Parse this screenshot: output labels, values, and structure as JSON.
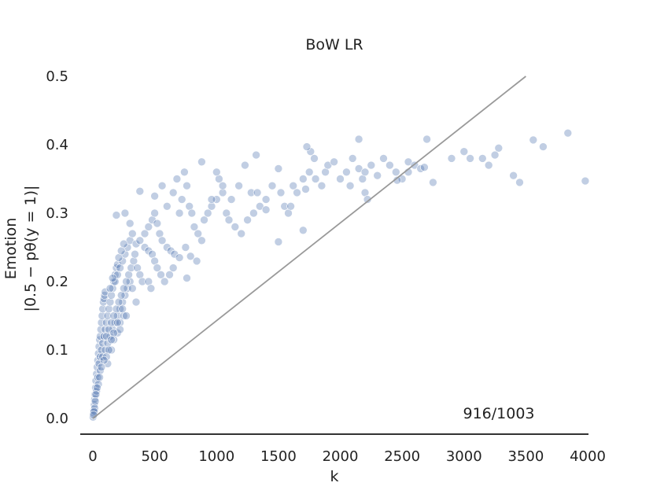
{
  "chart_data": {
    "type": "scatter",
    "title": "BoW LR",
    "xlabel": "k",
    "ylabel_line1": "Emotion",
    "ylabel_line2": "|0.5 − pθ(y = 1)|",
    "xlim": [
      -100,
      4000
    ],
    "ylim": [
      -0.02,
      0.5
    ],
    "xticks": [
      "0",
      "500",
      "1000",
      "1500",
      "2000",
      "2500",
      "3000",
      "3500",
      "4000"
    ],
    "yticks": [
      "0.0",
      "0.1",
      "0.2",
      "0.3",
      "0.4",
      "0.5"
    ],
    "grid": false,
    "reference_line": {
      "from": [
        0,
        0
      ],
      "to": [
        3500,
        0.5
      ]
    },
    "annotation": "916/1003",
    "point_color": "#4c72b0",
    "line_color": "#999999",
    "points": [
      [
        2,
        0.002
      ],
      [
        5,
        0.008
      ],
      [
        8,
        0.012
      ],
      [
        12,
        0.02
      ],
      [
        15,
        0.028
      ],
      [
        18,
        0.035
      ],
      [
        22,
        0.045
      ],
      [
        25,
        0.055
      ],
      [
        30,
        0.065
      ],
      [
        35,
        0.075
      ],
      [
        40,
        0.085
      ],
      [
        45,
        0.095
      ],
      [
        50,
        0.105
      ],
      [
        55,
        0.115
      ],
      [
        60,
        0.12
      ],
      [
        65,
        0.13
      ],
      [
        70,
        0.14
      ],
      [
        75,
        0.15
      ],
      [
        80,
        0.16
      ],
      [
        85,
        0.17
      ],
      [
        90,
        0.175
      ],
      [
        95,
        0.18
      ],
      [
        100,
        0.185
      ],
      [
        30,
        0.04
      ],
      [
        40,
        0.06
      ],
      [
        50,
        0.08
      ],
      [
        60,
        0.09
      ],
      [
        70,
        0.1
      ],
      [
        80,
        0.11
      ],
      [
        90,
        0.12
      ],
      [
        100,
        0.13
      ],
      [
        110,
        0.14
      ],
      [
        120,
        0.15
      ],
      [
        130,
        0.16
      ],
      [
        140,
        0.17
      ],
      [
        150,
        0.18
      ],
      [
        160,
        0.19
      ],
      [
        170,
        0.2
      ],
      [
        180,
        0.21
      ],
      [
        190,
        0.22
      ],
      [
        200,
        0.225
      ],
      [
        60,
        0.07
      ],
      [
        80,
        0.09
      ],
      [
        100,
        0.1
      ],
      [
        120,
        0.11
      ],
      [
        140,
        0.12
      ],
      [
        160,
        0.13
      ],
      [
        180,
        0.14
      ],
      [
        200,
        0.15
      ],
      [
        220,
        0.16
      ],
      [
        240,
        0.17
      ],
      [
        260,
        0.18
      ],
      [
        280,
        0.19
      ],
      [
        300,
        0.2
      ],
      [
        110,
        0.12
      ],
      [
        130,
        0.13
      ],
      [
        150,
        0.14
      ],
      [
        170,
        0.15
      ],
      [
        190,
        0.16
      ],
      [
        210,
        0.17
      ],
      [
        230,
        0.18
      ],
      [
        250,
        0.19
      ],
      [
        270,
        0.2
      ],
      [
        290,
        0.21
      ],
      [
        310,
        0.22
      ],
      [
        330,
        0.23
      ],
      [
        120,
        0.08
      ],
      [
        150,
        0.1
      ],
      [
        170,
        0.115
      ],
      [
        200,
        0.125
      ],
      [
        220,
        0.14
      ],
      [
        250,
        0.15
      ],
      [
        180,
        0.2
      ],
      [
        200,
        0.21
      ],
      [
        220,
        0.22
      ],
      [
        240,
        0.23
      ],
      [
        260,
        0.24
      ],
      [
        280,
        0.25
      ],
      [
        300,
        0.26
      ],
      [
        320,
        0.27
      ],
      [
        340,
        0.24
      ],
      [
        360,
        0.22
      ],
      [
        380,
        0.21
      ],
      [
        400,
        0.2
      ],
      [
        140,
        0.19
      ],
      [
        160,
        0.205
      ],
      [
        210,
        0.235
      ],
      [
        230,
        0.245
      ],
      [
        250,
        0.255
      ],
      [
        190,
        0.297
      ],
      [
        260,
        0.3
      ],
      [
        300,
        0.285
      ],
      [
        350,
        0.255
      ],
      [
        380,
        0.26
      ],
      [
        420,
        0.25
      ],
      [
        450,
        0.245
      ],
      [
        480,
        0.24
      ],
      [
        500,
        0.23
      ],
      [
        520,
        0.22
      ],
      [
        550,
        0.21
      ],
      [
        580,
        0.2
      ],
      [
        420,
        0.27
      ],
      [
        450,
        0.28
      ],
      [
        480,
        0.29
      ],
      [
        500,
        0.3
      ],
      [
        520,
        0.285
      ],
      [
        540,
        0.27
      ],
      [
        560,
        0.26
      ],
      [
        600,
        0.25
      ],
      [
        630,
        0.245
      ],
      [
        660,
        0.24
      ],
      [
        700,
        0.235
      ],
      [
        750,
        0.25
      ],
      [
        380,
        0.332
      ],
      [
        500,
        0.325
      ],
      [
        560,
        0.34
      ],
      [
        600,
        0.31
      ],
      [
        650,
        0.33
      ],
      [
        680,
        0.35
      ],
      [
        700,
        0.3
      ],
      [
        720,
        0.32
      ],
      [
        740,
        0.36
      ],
      [
        760,
        0.34
      ],
      [
        780,
        0.31
      ],
      [
        800,
        0.3
      ],
      [
        820,
        0.28
      ],
      [
        850,
        0.27
      ],
      [
        880,
        0.26
      ],
      [
        900,
        0.29
      ],
      [
        930,
        0.3
      ],
      [
        960,
        0.31
      ],
      [
        1000,
        0.32
      ],
      [
        1020,
        0.35
      ],
      [
        1050,
        0.33
      ],
      [
        1080,
        0.3
      ],
      [
        1100,
        0.29
      ],
      [
        1150,
        0.28
      ],
      [
        1200,
        0.27
      ],
      [
        1250,
        0.29
      ],
      [
        1300,
        0.3
      ],
      [
        1350,
        0.31
      ],
      [
        880,
        0.375
      ],
      [
        760,
        0.205
      ],
      [
        790,
        0.237
      ],
      [
        1000,
        0.36
      ],
      [
        1050,
        0.34
      ],
      [
        1120,
        0.32
      ],
      [
        1180,
        0.34
      ],
      [
        1230,
        0.37
      ],
      [
        1320,
        0.385
      ],
      [
        1280,
        0.33
      ],
      [
        1400,
        0.32
      ],
      [
        1450,
        0.34
      ],
      [
        1500,
        0.365
      ],
      [
        1520,
        0.33
      ],
      [
        1550,
        0.31
      ],
      [
        1580,
        0.3
      ],
      [
        1600,
        0.31
      ],
      [
        1620,
        0.34
      ],
      [
        1650,
        0.33
      ],
      [
        1700,
        0.35
      ],
      [
        1720,
        0.335
      ],
      [
        1750,
        0.36
      ],
      [
        1760,
        0.39
      ],
      [
        1790,
        0.38
      ],
      [
        1800,
        0.35
      ],
      [
        1850,
        0.34
      ],
      [
        1880,
        0.36
      ],
      [
        1900,
        0.37
      ],
      [
        1950,
        0.375
      ],
      [
        2000,
        0.35
      ],
      [
        2050,
        0.36
      ],
      [
        2080,
        0.34
      ],
      [
        2100,
        0.38
      ],
      [
        2150,
        0.365
      ],
      [
        2180,
        0.35
      ],
      [
        2200,
        0.36
      ],
      [
        2250,
        0.37
      ],
      [
        2300,
        0.355
      ],
      [
        2350,
        0.38
      ],
      [
        2400,
        0.37
      ],
      [
        2450,
        0.36
      ],
      [
        2500,
        0.35
      ],
      [
        2550,
        0.375
      ],
      [
        2600,
        0.37
      ],
      [
        2650,
        0.365
      ],
      [
        1500,
        0.258
      ],
      [
        1700,
        0.275
      ],
      [
        1730,
        0.397
      ],
      [
        2150,
        0.408
      ],
      [
        2200,
        0.33
      ],
      [
        2220,
        0.32
      ],
      [
        2460,
        0.348
      ],
      [
        2700,
        0.408
      ],
      [
        2750,
        0.345
      ],
      [
        2900,
        0.38
      ],
      [
        3000,
        0.39
      ],
      [
        3050,
        0.38
      ],
      [
        3150,
        0.38
      ],
      [
        3200,
        0.37
      ],
      [
        3250,
        0.385
      ],
      [
        3280,
        0.395
      ],
      [
        3400,
        0.355
      ],
      [
        3450,
        0.345
      ],
      [
        3560,
        0.407
      ],
      [
        3640,
        0.397
      ],
      [
        3840,
        0.417
      ],
      [
        3980,
        0.347
      ],
      [
        2680,
        0.367
      ],
      [
        2550,
        0.36
      ],
      [
        1400,
        0.305
      ],
      [
        1330,
        0.33
      ],
      [
        960,
        0.32
      ],
      [
        840,
        0.23
      ],
      [
        620,
        0.21
      ],
      [
        650,
        0.22
      ],
      [
        450,
        0.2
      ],
      [
        470,
        0.19
      ],
      [
        350,
        0.17
      ],
      [
        320,
        0.19
      ],
      [
        270,
        0.15
      ],
      [
        240,
        0.16
      ],
      [
        220,
        0.13
      ],
      [
        200,
        0.14
      ],
      [
        170,
        0.125
      ],
      [
        150,
        0.115
      ],
      [
        130,
        0.1
      ],
      [
        110,
        0.09
      ],
      [
        90,
        0.085
      ],
      [
        70,
        0.075
      ],
      [
        55,
        0.06
      ],
      [
        45,
        0.05
      ],
      [
        35,
        0.045
      ],
      [
        25,
        0.035
      ],
      [
        20,
        0.025
      ],
      [
        15,
        0.015
      ],
      [
        10,
        0.01
      ],
      [
        6,
        0.005
      ]
    ]
  }
}
